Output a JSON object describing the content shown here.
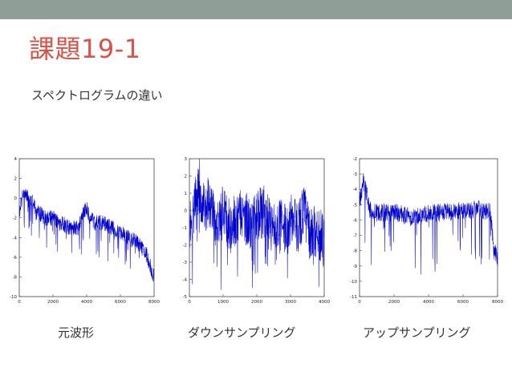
{
  "slide": {
    "title": "課題19-1",
    "subtitle": "スペクトログラムの違い",
    "bar_color": "#8f9f97",
    "title_color": "#d9534a"
  },
  "chart_data": [
    {
      "type": "line",
      "title": "",
      "caption": "元波形",
      "xlabel": "",
      "ylabel": "",
      "color": "#0000cc",
      "xlim": [
        0,
        8000
      ],
      "ylim": [
        -10,
        4
      ],
      "xticks": [
        0,
        2000,
        4000,
        6000,
        8000
      ],
      "yticks": [
        4,
        2,
        0,
        -2,
        -4,
        -6,
        -8,
        -10
      ],
      "grid": false,
      "series": [
        {
          "x": [
            0,
            200,
            400,
            600,
            800,
            1000,
            1200,
            1500,
            2000,
            2500,
            3000,
            3500,
            3800,
            4000,
            4200,
            4500,
            5000,
            5500,
            6000,
            6500,
            7000,
            7500,
            7800,
            8000
          ],
          "y": [
            -1.5,
            0.3,
            0.5,
            -0.5,
            0,
            -1.5,
            -1.5,
            -2,
            -2,
            -2.5,
            -3,
            -3,
            -1.5,
            -1,
            -2,
            -2.5,
            -2.5,
            -3,
            -3.5,
            -4,
            -4.5,
            -5.5,
            -7,
            -8
          ]
        }
      ]
    },
    {
      "type": "line",
      "title": "",
      "caption": "ダウンサンプリング",
      "xlabel": "",
      "ylabel": "",
      "color": "#0000cc",
      "xlim": [
        0,
        4000
      ],
      "ylim": [
        -5,
        3
      ],
      "xticks": [
        0,
        1000,
        2000,
        3000,
        4000
      ],
      "yticks": [
        3,
        2,
        1,
        0,
        -1,
        -2,
        -3,
        -4,
        -5
      ],
      "grid": false,
      "series": [
        {
          "x": [
            0,
            200,
            300,
            400,
            600,
            800,
            1000,
            1200,
            1400,
            1600,
            1800,
            2000,
            2200,
            2400,
            2600,
            2800,
            3000,
            3200,
            3400,
            3600,
            3800,
            4000
          ],
          "y": [
            -1,
            0.5,
            1.5,
            0,
            0.5,
            -1,
            0,
            -1,
            -0.5,
            0,
            -1,
            -0.5,
            0,
            -1,
            -0.5,
            -1,
            -0.5,
            -1,
            0,
            -1.5,
            -1,
            -2
          ]
        }
      ]
    },
    {
      "type": "line",
      "title": "",
      "caption": "アップサンプリング",
      "xlabel": "",
      "ylabel": "",
      "color": "#0000cc",
      "xlim": [
        0,
        8000
      ],
      "ylim": [
        -11,
        -2
      ],
      "xticks": [
        0,
        2000,
        4000,
        6000,
        8000
      ],
      "yticks": [
        -2,
        -3,
        -4,
        -5,
        -6,
        -7,
        -8,
        -9,
        -10,
        -11
      ],
      "grid": false,
      "series": [
        {
          "x": [
            0,
            200,
            400,
            600,
            1000,
            2000,
            3000,
            4000,
            5000,
            6000,
            7000,
            7600,
            7700,
            7800,
            8000
          ],
          "y": [
            -5,
            -3.5,
            -4.2,
            -5.3,
            -5.5,
            -5.5,
            -5.8,
            -5.6,
            -5.5,
            -5.4,
            -5.3,
            -5.5,
            -7,
            -8,
            -8.5
          ]
        }
      ]
    }
  ]
}
